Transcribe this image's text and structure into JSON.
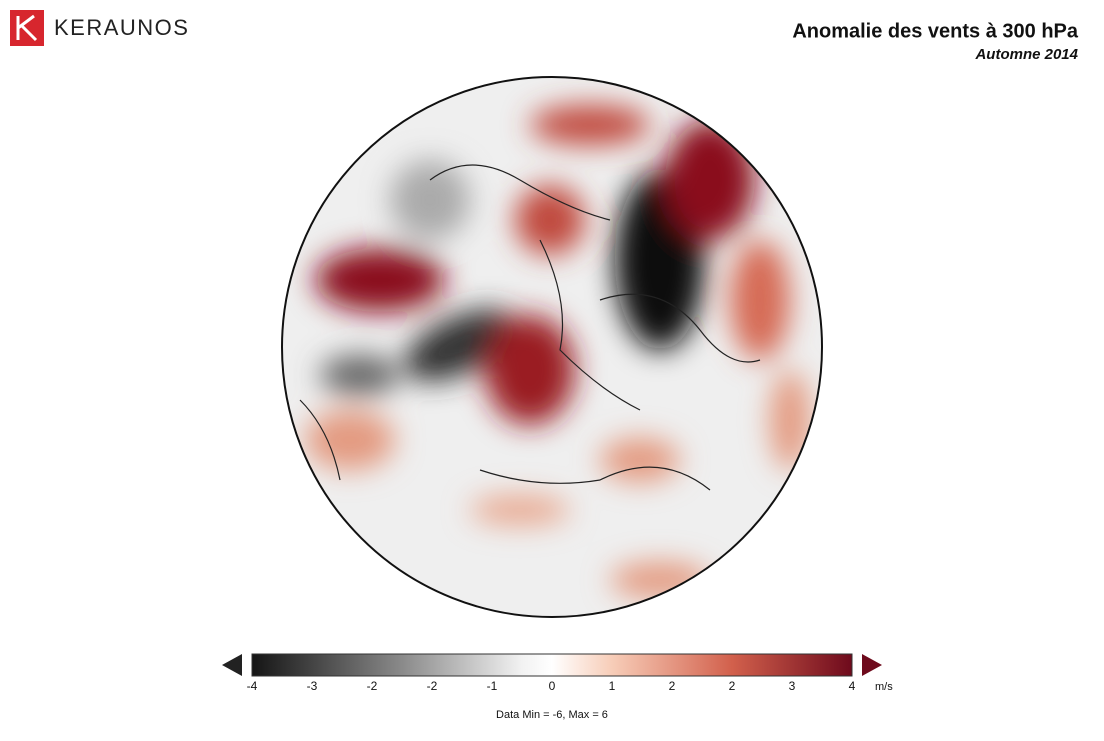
{
  "header": {
    "brand": "KERAUNOS",
    "title": "Anomalie des vents à 300 hPa",
    "subtitle": "Automne 2014"
  },
  "colorbar": {
    "tick_labels": [
      "-4",
      "-3",
      "-2",
      "-2",
      "-1",
      "0",
      "1",
      "2",
      "2",
      "3",
      "4"
    ],
    "unit": "m/s",
    "note": "Data Min = -6, Max = 6"
  }
}
